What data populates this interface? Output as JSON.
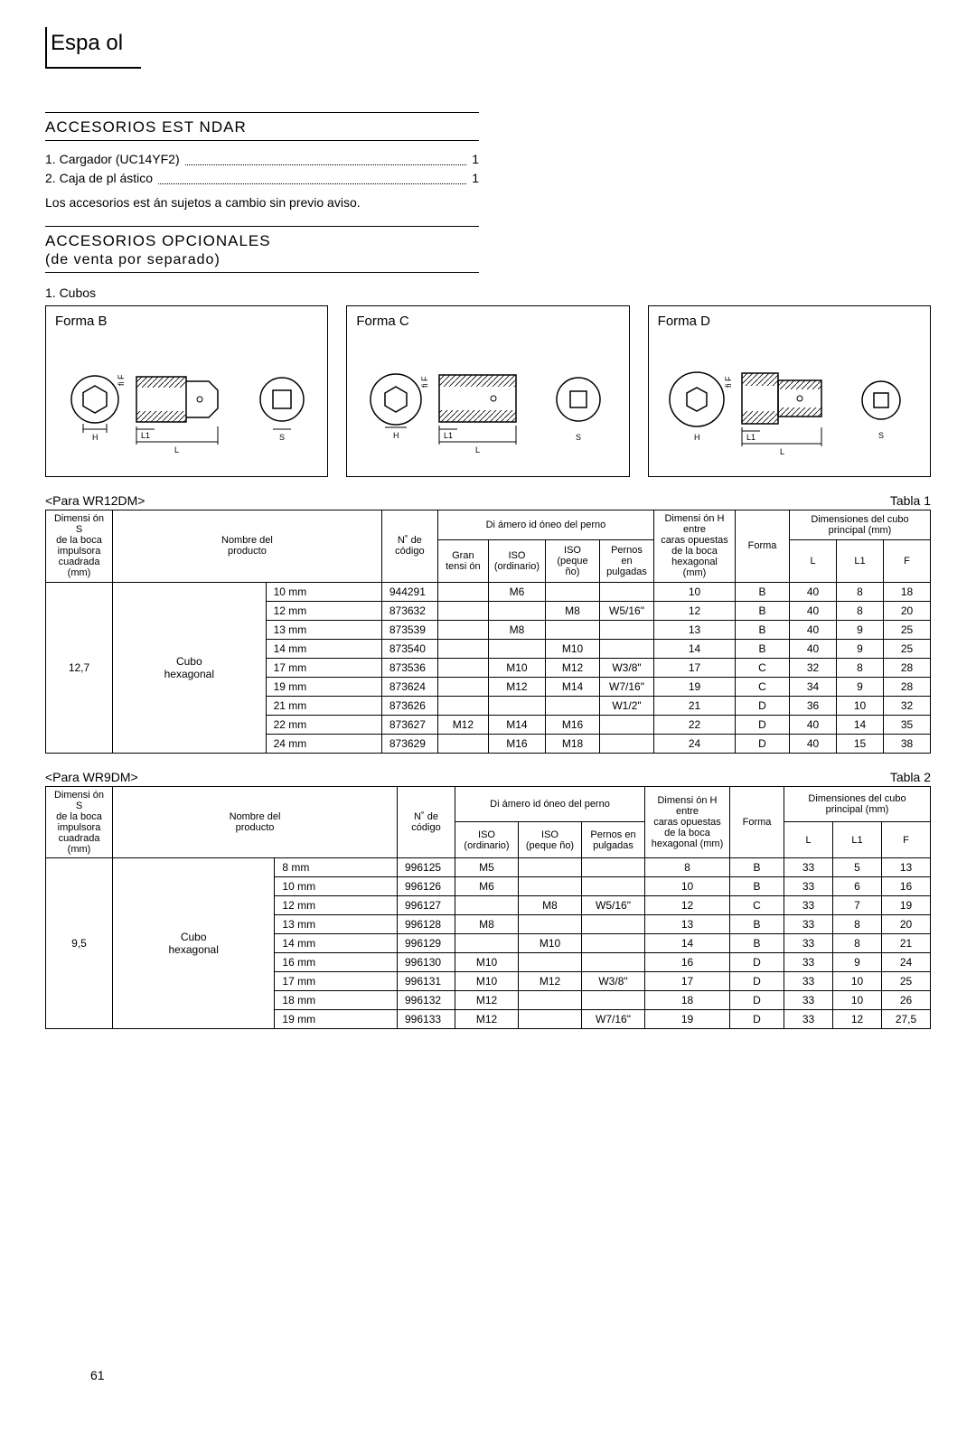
{
  "lang_header": "Espa ol",
  "section1_title": "ACCESORIOS EST NDAR",
  "acc_items": [
    {
      "num": "1.",
      "label": "Cargador (UC14YF2)",
      "qty": "1"
    },
    {
      "num": "2.",
      "label": "Caja de pl ástico",
      "qty": "1"
    }
  ],
  "note": "Los accesorios est án sujetos a cambio sin previo aviso.",
  "section2_title": "ACCESORIOS OPCIONALES",
  "section2_sub": "(de venta por separado)",
  "item1": "1.  Cubos",
  "forms": [
    "Forma B",
    "Forma C",
    "Forma D"
  ],
  "t1_label_left": "<Para WR12DM>",
  "t1_label_right": "Tabla 1",
  "t2_label_left": "<Para WR9DM>",
  "t2_label_right": "Tabla 2",
  "hdr": {
    "dimS": "Dimensi ón S\nde la boca\nimpulsora\ncuadrada (mm)",
    "nombre": "Nombre del\nproducto",
    "codigo": "N˚ de\ncódigo",
    "diam": "Di ámero id óneo del perno",
    "gran": "Gran\ntensi ón",
    "iso_ord": "ISO\n(ordinario)",
    "iso_peq": "ISO\n(peque ño)",
    "pernos": "Pernos en\npulgadas",
    "dimH": "Dimensi ón H entre\ncaras opuestas\nde la boca\nhexagonal (mm)",
    "forma": "Forma",
    "dimcubo": "Dimensiones del cubo\nprincipal (mm)",
    "L": "L",
    "L1": "L1",
    "F": "F"
  },
  "t1": {
    "dimS": "12,7",
    "prod": "Cubo\nhexagonal",
    "rows": [
      {
        "sz": "10 mm",
        "code": "944291",
        "gran": "",
        "iso_o": "M6",
        "iso_p": "",
        "pern": "",
        "h": "10",
        "f": "B",
        "L": "40",
        "L1": "8",
        "F": "18"
      },
      {
        "sz": "12 mm",
        "code": "873632",
        "gran": "",
        "iso_o": "",
        "iso_p": "M8",
        "pern": "W5/16\"",
        "h": "12",
        "f": "B",
        "L": "40",
        "L1": "8",
        "F": "20"
      },
      {
        "sz": "13 mm",
        "code": "873539",
        "gran": "",
        "iso_o": "M8",
        "iso_p": "",
        "pern": "",
        "h": "13",
        "f": "B",
        "L": "40",
        "L1": "9",
        "F": "25"
      },
      {
        "sz": "14 mm",
        "code": "873540",
        "gran": "",
        "iso_o": "",
        "iso_p": "M10",
        "pern": "",
        "h": "14",
        "f": "B",
        "L": "40",
        "L1": "9",
        "F": "25"
      },
      {
        "sz": "17 mm",
        "code": "873536",
        "gran": "",
        "iso_o": "M10",
        "iso_p": "M12",
        "pern": "W3/8\"",
        "h": "17",
        "f": "C",
        "L": "32",
        "L1": "8",
        "F": "28"
      },
      {
        "sz": "19 mm",
        "code": "873624",
        "gran": "",
        "iso_o": "M12",
        "iso_p": "M14",
        "pern": "W7/16\"",
        "h": "19",
        "f": "C",
        "L": "34",
        "L1": "9",
        "F": "28"
      },
      {
        "sz": "21 mm",
        "code": "873626",
        "gran": "",
        "iso_o": "",
        "iso_p": "",
        "pern": "W1/2\"",
        "h": "21",
        "f": "D",
        "L": "36",
        "L1": "10",
        "F": "32"
      },
      {
        "sz": "22 mm",
        "code": "873627",
        "gran": "M12",
        "iso_o": "M14",
        "iso_p": "M16",
        "pern": "",
        "h": "22",
        "f": "D",
        "L": "40",
        "L1": "14",
        "F": "35"
      },
      {
        "sz": "24 mm",
        "code": "873629",
        "gran": "",
        "iso_o": "M16",
        "iso_p": "M18",
        "pern": "",
        "h": "24",
        "f": "D",
        "L": "40",
        "L1": "15",
        "F": "38"
      }
    ]
  },
  "t2": {
    "dimS": "9,5",
    "prod": "Cubo\nhexagonal",
    "rows": [
      {
        "sz": "8 mm",
        "code": "996125",
        "iso_o": "M5",
        "iso_p": "",
        "pern": "",
        "h": "8",
        "f": "B",
        "L": "33",
        "L1": "5",
        "F": "13"
      },
      {
        "sz": "10 mm",
        "code": "996126",
        "iso_o": "M6",
        "iso_p": "",
        "pern": "",
        "h": "10",
        "f": "B",
        "L": "33",
        "L1": "6",
        "F": "16"
      },
      {
        "sz": "12 mm",
        "code": "996127",
        "iso_o": "",
        "iso_p": "M8",
        "pern": "W5/16\"",
        "h": "12",
        "f": "C",
        "L": "33",
        "L1": "7",
        "F": "19"
      },
      {
        "sz": "13 mm",
        "code": "996128",
        "iso_o": "M8",
        "iso_p": "",
        "pern": "",
        "h": "13",
        "f": "B",
        "L": "33",
        "L1": "8",
        "F": "20"
      },
      {
        "sz": "14 mm",
        "code": "996129",
        "iso_o": "",
        "iso_p": "M10",
        "pern": "",
        "h": "14",
        "f": "B",
        "L": "33",
        "L1": "8",
        "F": "21"
      },
      {
        "sz": "16 mm",
        "code": "996130",
        "iso_o": "M10",
        "iso_p": "",
        "pern": "",
        "h": "16",
        "f": "D",
        "L": "33",
        "L1": "9",
        "F": "24"
      },
      {
        "sz": "17 mm",
        "code": "996131",
        "iso_o": "M10",
        "iso_p": "M12",
        "pern": "W3/8\"",
        "h": "17",
        "f": "D",
        "L": "33",
        "L1": "10",
        "F": "25"
      },
      {
        "sz": "18 mm",
        "code": "996132",
        "iso_o": "M12",
        "iso_p": "",
        "pern": "",
        "h": "18",
        "f": "D",
        "L": "33",
        "L1": "10",
        "F": "26"
      },
      {
        "sz": "19 mm",
        "code": "996133",
        "iso_o": "M12",
        "iso_p": "",
        "pern": "W7/16\"",
        "h": "19",
        "f": "D",
        "L": "33",
        "L1": "12",
        "F": "27,5"
      }
    ]
  },
  "page_num": "61",
  "svg_labels": {
    "H": "H",
    "L": "L",
    "L1": "L1",
    "S": "S",
    "fiF": "fi F"
  }
}
